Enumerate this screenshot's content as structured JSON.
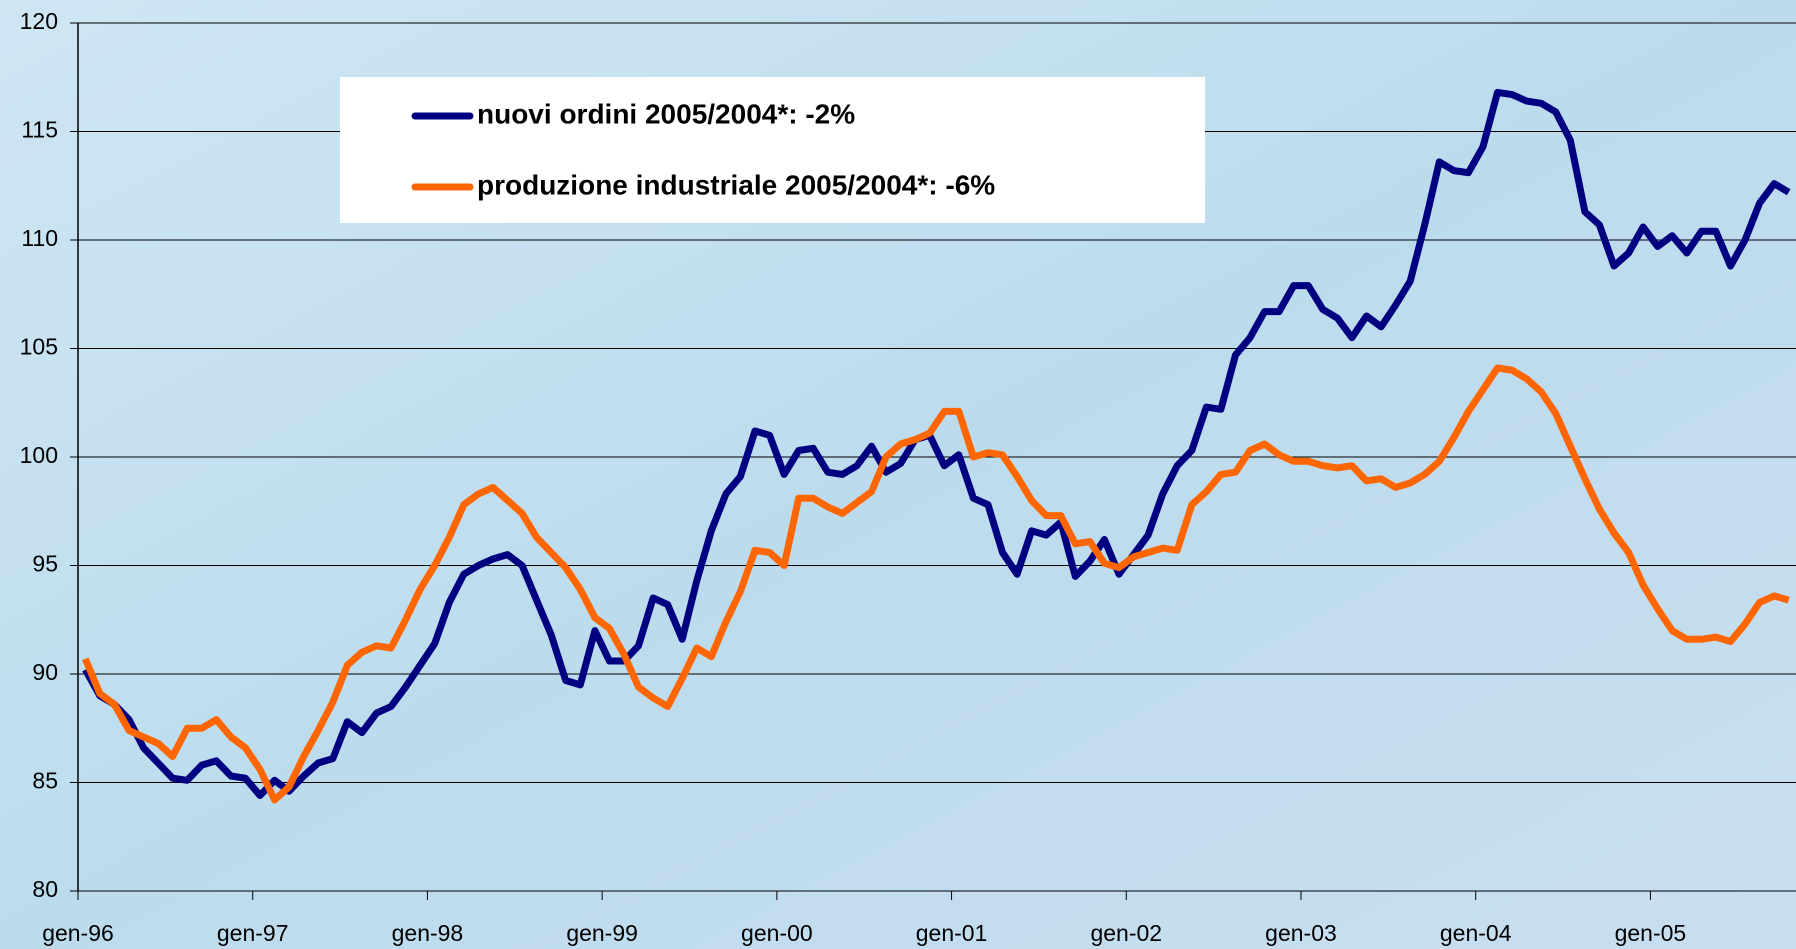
{
  "chart_data": {
    "type": "line",
    "categories": [
      "gen-96",
      null,
      null,
      null,
      null,
      null,
      null,
      null,
      null,
      null,
      null,
      null,
      "gen-97",
      null,
      null,
      null,
      null,
      null,
      null,
      null,
      null,
      null,
      null,
      null,
      "gen-98",
      null,
      null,
      null,
      null,
      null,
      null,
      null,
      null,
      null,
      null,
      null,
      "gen-99",
      null,
      null,
      null,
      null,
      null,
      null,
      null,
      null,
      null,
      null,
      null,
      "gen-00",
      null,
      null,
      null,
      null,
      null,
      null,
      null,
      null,
      null,
      null,
      null,
      "gen-01",
      null,
      null,
      null,
      null,
      null,
      null,
      null,
      null,
      null,
      null,
      null,
      "gen-02",
      null,
      null,
      null,
      null,
      null,
      null,
      null,
      null,
      null,
      null,
      null,
      "gen-03",
      null,
      null,
      null,
      null,
      null,
      null,
      null,
      null,
      null,
      null,
      null,
      "gen-04",
      null,
      null,
      null,
      null,
      null,
      null,
      null,
      null,
      null,
      null,
      null,
      "gen-05",
      null,
      null,
      null,
      null,
      null,
      null,
      null,
      null,
      null
    ],
    "series": [
      {
        "name": "nuovi ordini 2005/2004*: -2%",
        "color": "#000080",
        "values": [
          90.2,
          89.0,
          88.6,
          87.9,
          86.6,
          85.9,
          85.2,
          85.1,
          85.8,
          86.0,
          85.3,
          85.2,
          84.4,
          85.1,
          84.6,
          85.3,
          85.9,
          86.1,
          87.8,
          87.3,
          88.2,
          88.5,
          89.4,
          90.4,
          91.4,
          93.3,
          94.6,
          95.0,
          95.3,
          95.5,
          95.0,
          93.4,
          91.8,
          89.7,
          89.5,
          92.0,
          90.6,
          90.6,
          91.3,
          93.5,
          93.2,
          91.6,
          94.3,
          96.6,
          98.3,
          99.1,
          101.2,
          101.0,
          99.2,
          100.3,
          100.4,
          99.3,
          99.2,
          99.6,
          100.5,
          99.3,
          99.7,
          100.8,
          101.0,
          99.6,
          100.1,
          98.1,
          97.8,
          95.6,
          94.6,
          96.6,
          96.4,
          97.0,
          94.5,
          95.2,
          96.2,
          94.6,
          95.5,
          96.4,
          98.3,
          99.6,
          100.3,
          102.3,
          102.2,
          104.7,
          105.5,
          106.7,
          106.7,
          107.9,
          107.9,
          106.8,
          106.4,
          105.5,
          106.5,
          106.0,
          107.0,
          108.1,
          110.7,
          113.6,
          113.2,
          113.1,
          114.3,
          116.8,
          116.7,
          116.4,
          116.3,
          115.9,
          114.6,
          111.3,
          110.7,
          108.8,
          109.4,
          110.6,
          109.7,
          110.2,
          109.4,
          110.4,
          110.4,
          108.8,
          110.0,
          111.7,
          112.6,
          112.2
        ]
      },
      {
        "name": "produzione industriale 2005/2004*: -6%",
        "color": "#ff6600",
        "values": [
          90.7,
          89.1,
          88.6,
          87.4,
          87.1,
          86.8,
          86.2,
          87.5,
          87.5,
          87.9,
          87.1,
          86.6,
          85.6,
          84.2,
          84.8,
          86.2,
          87.4,
          88.7,
          90.4,
          91.0,
          91.3,
          91.2,
          92.5,
          93.9,
          95.0,
          96.3,
          97.8,
          98.3,
          98.6,
          98.0,
          97.4,
          96.3,
          95.6,
          94.9,
          93.9,
          92.6,
          92.1,
          90.9,
          89.4,
          88.9,
          88.5,
          89.8,
          91.2,
          90.8,
          92.4,
          93.8,
          95.7,
          95.6,
          95.0,
          98.1,
          98.1,
          97.7,
          97.4,
          97.9,
          98.4,
          100.0,
          100.6,
          100.8,
          101.1,
          102.1,
          102.1,
          100.0,
          100.2,
          100.1,
          99.1,
          98.0,
          97.3,
          97.3,
          96.0,
          96.1,
          95.1,
          94.9,
          95.4,
          95.6,
          95.8,
          95.7,
          97.8,
          98.4,
          99.2,
          99.3,
          100.3,
          100.6,
          100.1,
          99.8,
          99.8,
          99.6,
          99.5,
          99.6,
          98.9,
          99.0,
          98.6,
          98.8,
          99.2,
          99.8,
          100.9,
          102.1,
          103.1,
          104.1,
          104.0,
          103.6,
          103.0,
          102.0,
          100.5,
          99.0,
          97.6,
          96.5,
          95.6,
          94.1,
          93.0,
          92.0,
          91.6,
          91.6,
          91.7,
          91.5,
          92.3,
          93.3,
          93.6,
          93.4
        ]
      }
    ],
    "ylim": [
      80,
      120
    ],
    "yticks": [
      80,
      85,
      90,
      95,
      100,
      105,
      110,
      115,
      120
    ],
    "grid": true
  }
}
